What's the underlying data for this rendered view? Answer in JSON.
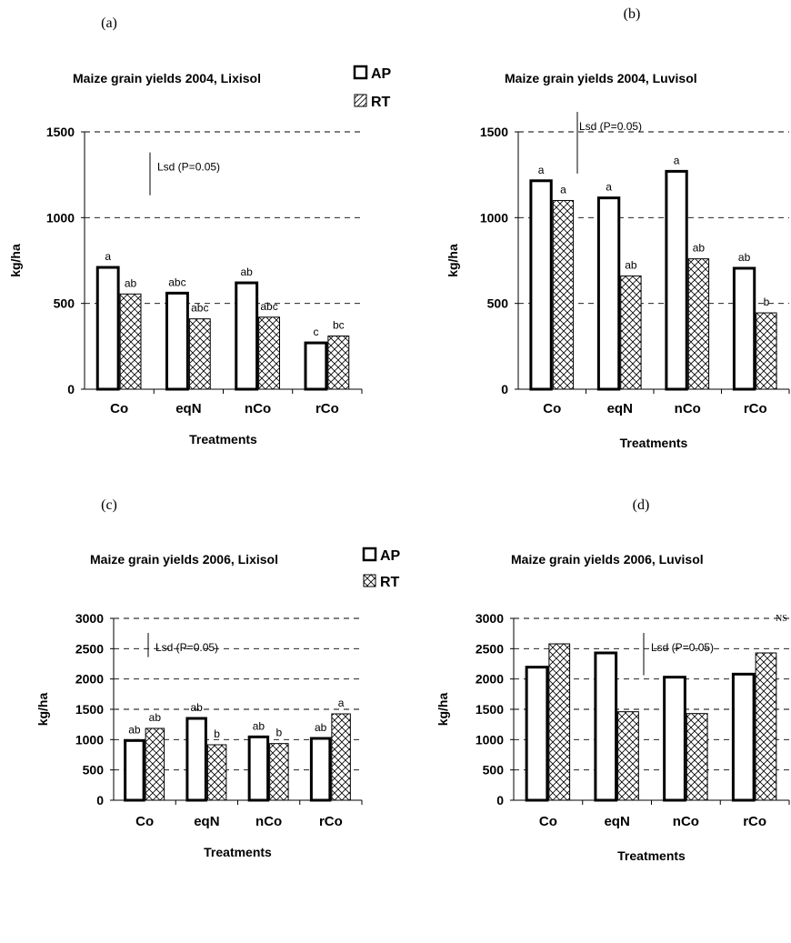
{
  "chart_data": [
    {
      "panel": "(a)",
      "type": "bar",
      "title": "Maize grain yields 2004, Lixisol",
      "xlabel": "Treatments",
      "ylabel": "kg/ha",
      "ylim": [
        0,
        1500
      ],
      "yticks": [
        "0",
        "500",
        "1000",
        "1500"
      ],
      "grid": true,
      "categories": [
        "Co",
        "eqN",
        "nCo",
        "rCo"
      ],
      "series": [
        {
          "name": "AP",
          "values": [
            710,
            560,
            620,
            270
          ],
          "labels": [
            "a",
            "abc",
            "ab",
            "c"
          ]
        },
        {
          "name": "RT",
          "values": [
            555,
            410,
            420,
            310
          ],
          "labels": [
            "ab",
            "abc",
            "abc",
            "bc"
          ]
        }
      ],
      "legend": {
        "entries": [
          "AP",
          "RT"
        ],
        "placement": "top-right"
      },
      "lsd": {
        "label": "Lsd (P=0.05)",
        "value": 250
      },
      "note": ""
    },
    {
      "panel": "(b)",
      "type": "bar",
      "title": "Maize grain yields 2004, Luvisol",
      "xlabel": "Treatments",
      "ylabel": "kg/ha",
      "ylim": [
        0,
        1500
      ],
      "yticks": [
        "0",
        "500",
        "1000",
        "1500"
      ],
      "grid": true,
      "categories": [
        "Co",
        "eqN",
        "nCo",
        "rCo"
      ],
      "series": [
        {
          "name": "AP",
          "values": [
            1215,
            1115,
            1270,
            705
          ],
          "labels": [
            "a",
            "a",
            "a",
            "ab"
          ]
        },
        {
          "name": "RT",
          "values": [
            1100,
            660,
            760,
            445
          ],
          "labels": [
            "a",
            "ab",
            "ab",
            "b"
          ]
        }
      ],
      "legend": null,
      "lsd": {
        "label": "Lsd (P=0.05)",
        "value": 360
      },
      "note": ""
    },
    {
      "panel": "(c)",
      "type": "bar",
      "title": "Maize grain yields 2006, Lixisol",
      "xlabel": "Treatments",
      "ylabel": "kg/ha",
      "ylim": [
        0,
        3000
      ],
      "yticks": [
        "0",
        "500",
        "1000",
        "1500",
        "2000",
        "2500",
        "3000"
      ],
      "grid": true,
      "categories": [
        "Co",
        "eqN",
        "nCo",
        "rCo"
      ],
      "series": [
        {
          "name": "AP",
          "values": [
            985,
            1350,
            1045,
            1020
          ],
          "labels": [
            "ab",
            "ab",
            "ab",
            "ab"
          ]
        },
        {
          "name": "RT",
          "values": [
            1185,
            915,
            935,
            1425
          ],
          "labels": [
            "ab",
            "b",
            "b",
            "a"
          ]
        }
      ],
      "legend": {
        "entries": [
          "AP",
          "RT"
        ],
        "placement": "top-right"
      },
      "lsd": {
        "label": "Lsd (P=0.05)",
        "value": 400
      },
      "note": ""
    },
    {
      "panel": "(d)",
      "type": "bar",
      "title": "Maize grain yields 2006, Luvisol",
      "xlabel": "Treatments",
      "ylabel": "kg/ha",
      "ylim": [
        0,
        3000
      ],
      "yticks": [
        "0",
        "500",
        "1000",
        "1500",
        "2000",
        "2500",
        "3000"
      ],
      "grid": true,
      "categories": [
        "Co",
        "eqN",
        "nCo",
        "rCo"
      ],
      "series": [
        {
          "name": "AP",
          "values": [
            2195,
            2430,
            2030,
            2080
          ],
          "labels": [
            "",
            "",
            "",
            ""
          ]
        },
        {
          "name": "RT",
          "values": [
            2580,
            1460,
            1430,
            2430
          ],
          "labels": [
            "",
            "",
            "",
            ""
          ]
        }
      ],
      "legend": null,
      "lsd": {
        "label": "Lsd (P=0.05)",
        "value": 700
      },
      "note": "NS"
    }
  ]
}
